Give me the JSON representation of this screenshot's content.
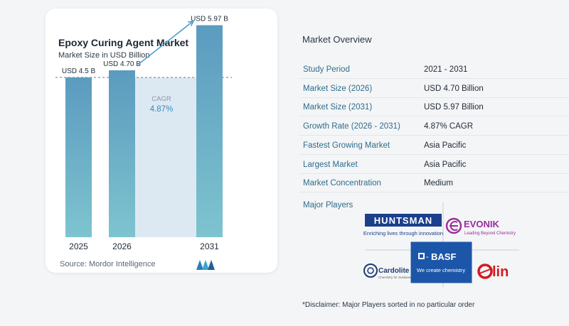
{
  "chart": {
    "title": "Epoxy Curing Agent Market",
    "subtitle": "Market Size in USD Billion",
    "source": "Source:  Mordor Intelligence"
  },
  "chart_data": {
    "type": "bar",
    "title": "Epoxy Curing Agent Market",
    "subtitle": "Market Size in USD Billion",
    "categories": [
      "2025",
      "2026",
      "2031"
    ],
    "values": [
      4.5,
      4.7,
      5.97
    ],
    "data_labels": [
      "USD 4.5 B",
      "USD 4.70 B",
      "USD 5.97 B"
    ],
    "ylim": [
      0,
      6
    ],
    "grid": false,
    "annotation": {
      "label": "CAGR",
      "value": "4.87%"
    },
    "colors": {
      "bar_top": "#5b9bbf",
      "bar_bottom": "#7ec4cf",
      "band": "#dde9f2",
      "arrow": "#4f9ccf"
    }
  },
  "overview": {
    "title": "Market Overview",
    "rows": [
      {
        "label": "Study Period",
        "value": "2021 - 2031"
      },
      {
        "label": "Market Size (2026)",
        "value": "USD 4.70 Billion"
      },
      {
        "label": "Market Size (2031)",
        "value": "USD 5.97 Billion"
      },
      {
        "label": "Growth Rate (2026 - 2031)",
        "value": "4.87% CAGR"
      },
      {
        "label": "Fastest Growing Market",
        "value": "Asia Pacific"
      },
      {
        "label": "Largest Market",
        "value": "Asia Pacific"
      },
      {
        "label": "Market Concentration",
        "value": "Medium"
      }
    ],
    "players_label": "Major Players",
    "disclaimer": "*Disclaimer: Major Players sorted in no particular order"
  },
  "players": {
    "huntsman": {
      "name": "HUNTSMAN",
      "tagline": "Enriching lives through innovation",
      "color": "#1b3f8c"
    },
    "evonik": {
      "name": "EVONIK",
      "tagline": "Leading Beyond Chemistry",
      "color": "#9b2b9c"
    },
    "cardolite": {
      "name": "Cardolite",
      "tagline": "Chemistry for Sustainable",
      "color": "#1e3a6e"
    },
    "basf": {
      "name": "BASF",
      "tagline": "We create chemistry",
      "color": "#1c56a8"
    },
    "olin": {
      "name": "lin",
      "color": "#d11b22"
    }
  }
}
